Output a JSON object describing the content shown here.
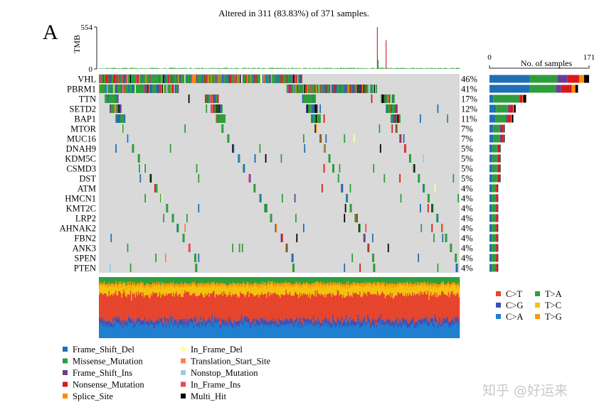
{
  "watermark": "知乎 @好运来",
  "chart_data": {
    "type": "heatmap",
    "panel_label": "A",
    "title": "Altered in 311 (83.83%) of 371 samples.",
    "tmb": {
      "ylabel": "TMB",
      "ylim": [
        0,
        554
      ],
      "ticks": [
        "554",
        "0"
      ]
    },
    "genes": [
      "VHL",
      "PBRM1",
      "TTN",
      "SETD2",
      "BAP1",
      "MTOR",
      "MUC16",
      "DNAH9",
      "KDM5C",
      "CSMD3",
      "DST",
      "ATM",
      "HMCN1",
      "KMT2C",
      "LRP2",
      "AHNAK2",
      "FBN2",
      "ANK3",
      "SPEN",
      "PTEN"
    ],
    "percentages": [
      "46%",
      "41%",
      "17%",
      "12%",
      "11%",
      "7%",
      "7%",
      "5%",
      "5%",
      "5%",
      "5%",
      "4%",
      "4%",
      "4%",
      "4%",
      "4%",
      "4%",
      "4%",
      "4%",
      "4%"
    ],
    "side_bar": {
      "xlabel": "No. of samples",
      "xlim": [
        0,
        171
      ],
      "ticks": [
        "0",
        "171"
      ],
      "values": [
        171,
        152,
        63,
        45,
        41,
        26,
        26,
        19,
        19,
        19,
        19,
        15,
        15,
        15,
        15,
        15,
        15,
        15,
        15,
        15
      ]
    },
    "variant_classes": [
      {
        "label": "Frame_Shift_Del",
        "color": "#1f6fb4"
      },
      {
        "label": "Missense_Mutation",
        "color": "#2e9e3b"
      },
      {
        "label": "Frame_Shift_Ins",
        "color": "#6a3d9a"
      },
      {
        "label": "Nonsense_Mutation",
        "color": "#d7191c"
      },
      {
        "label": "Splice_Site",
        "color": "#ff8c00"
      },
      {
        "label": "In_Frame_Del",
        "color": "#ffff99"
      },
      {
        "label": "Translation_Start_Site",
        "color": "#ff7f50"
      },
      {
        "label": "Nonstop_Mutation",
        "color": "#9ecae1"
      },
      {
        "label": "In_Frame_Ins",
        "color": "#e34a5a"
      },
      {
        "label": "Multi_Hit",
        "color": "#000000"
      }
    ],
    "snv_classes": [
      {
        "label": "C>T",
        "color": "#e6452c"
      },
      {
        "label": "T>A",
        "color": "#2e9e3b"
      },
      {
        "label": "C>G",
        "color": "#3f51b5"
      },
      {
        "label": "T>C",
        "color": "#f4c20d"
      },
      {
        "label": "C>A",
        "color": "#1f7fd0"
      },
      {
        "label": "T>G",
        "color": "#ff9800"
      }
    ],
    "background_color": "#d9d9d9",
    "samples": 371
  }
}
